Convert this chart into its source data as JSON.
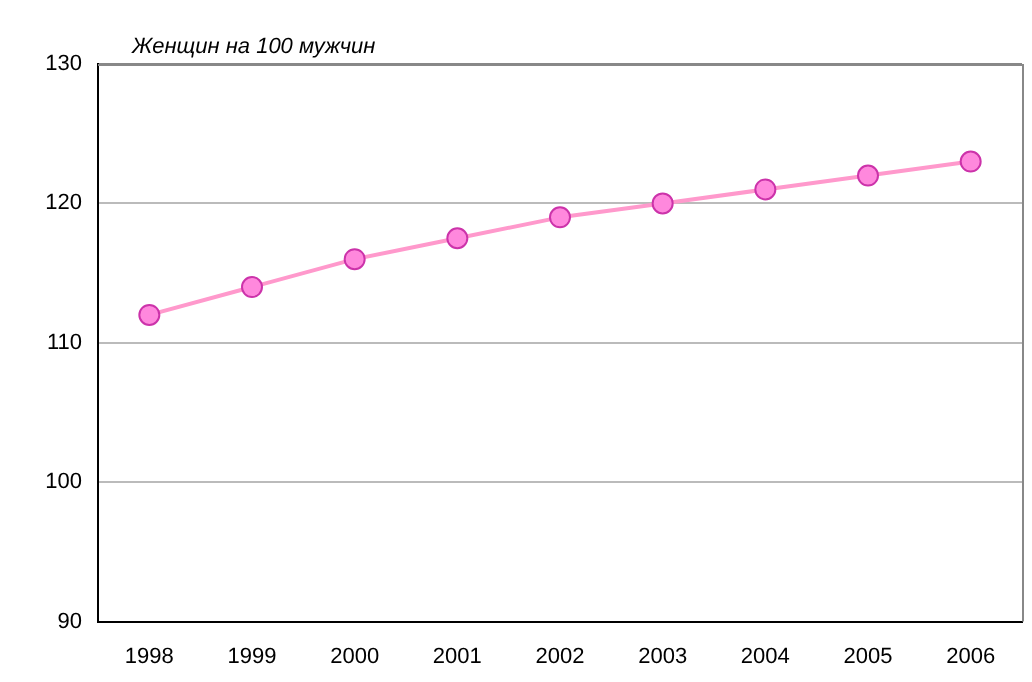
{
  "chart_data": {
    "type": "line",
    "ylabel": "Женщин на 100 мужчин",
    "categories": [
      "1998",
      "1999",
      "2000",
      "2001",
      "2002",
      "2003",
      "2004",
      "2005",
      "2006"
    ],
    "series": [
      {
        "color": "#ff99cc",
        "values": [
          112,
          114,
          116,
          117.5,
          119,
          120,
          121,
          122,
          123
        ]
      }
    ],
    "ylim": [
      90,
      130
    ],
    "yticks": [
      90,
      100,
      110,
      120,
      130
    ],
    "grid": "y",
    "legend": false,
    "marker": "circle",
    "line_style": "solid"
  }
}
